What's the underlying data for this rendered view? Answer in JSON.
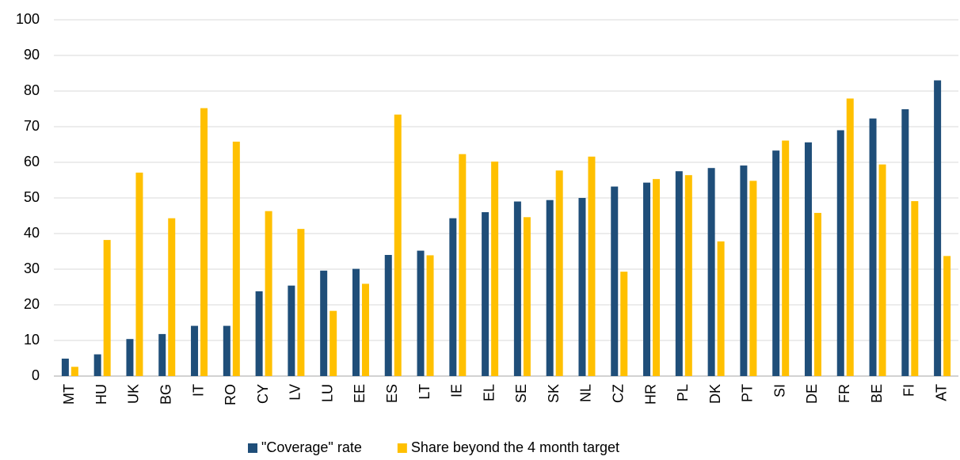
{
  "chart_data": {
    "type": "bar",
    "categories": [
      "MT",
      "HU",
      "UK",
      "BG",
      "IT",
      "RO",
      "CY",
      "LV",
      "LU",
      "EE",
      "ES",
      "LT",
      "IE",
      "EL",
      "SE",
      "SK",
      "NL",
      "CZ",
      "HR",
      "PL",
      "DK",
      "PT",
      "SI",
      "DE",
      "FR",
      "BE",
      "FI",
      "AT"
    ],
    "series": [
      {
        "name": "\"Coverage\" rate",
        "color": "#1f4e79",
        "values": [
          4.9,
          6.1,
          10.4,
          11.8,
          14.1,
          14.1,
          23.8,
          25.4,
          29.6,
          30.1,
          34.0,
          35.2,
          44.3,
          46.0,
          49.0,
          49.4,
          50.0,
          53.2,
          54.3,
          57.5,
          58.4,
          59.1,
          63.3,
          65.6,
          69.0,
          72.3,
          74.9,
          83.0
        ]
      },
      {
        "name": "Share beyond the 4 month target",
        "color": "#ffc000",
        "values": [
          2.6,
          38.2,
          57.1,
          44.3,
          75.2,
          65.8,
          46.3,
          41.3,
          18.3,
          25.9,
          73.4,
          33.9,
          62.3,
          60.2,
          44.6,
          57.7,
          61.6,
          29.3,
          55.3,
          56.4,
          37.8,
          54.8,
          66.1,
          45.8,
          77.9,
          59.4,
          49.1,
          33.7
        ]
      }
    ],
    "ylim": [
      0,
      100
    ],
    "yticks": [
      0,
      10,
      20,
      30,
      40,
      50,
      60,
      70,
      80,
      90,
      100
    ],
    "grid": true,
    "legend": "bottom"
  }
}
